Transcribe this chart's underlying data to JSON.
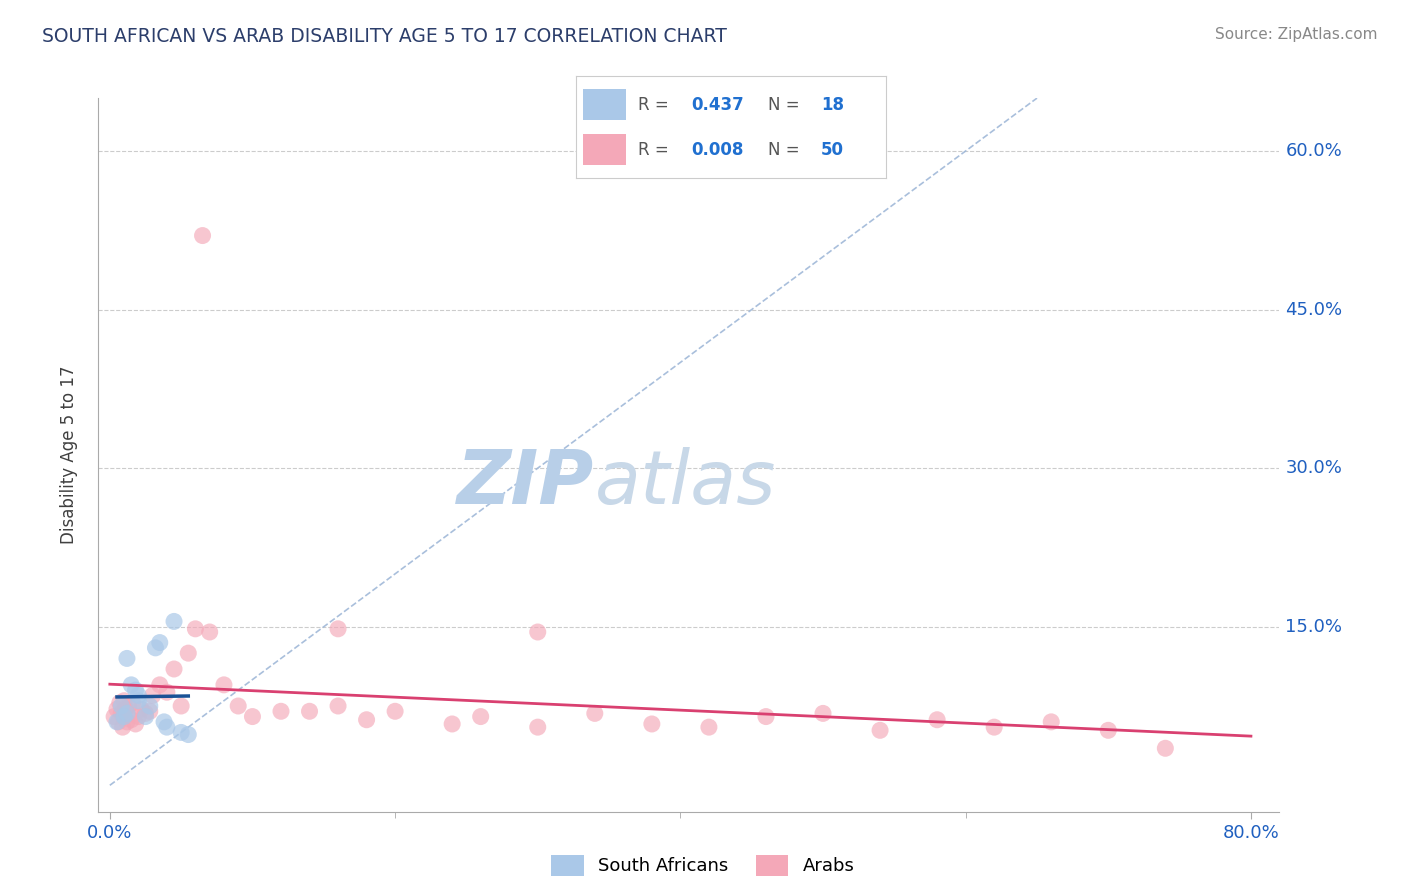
{
  "title": "SOUTH AFRICAN VS ARAB DISABILITY AGE 5 TO 17 CORRELATION CHART",
  "source": "Source: ZipAtlas.com",
  "ylabel": "Disability Age 5 to 17",
  "sa_R": 0.437,
  "sa_N": 18,
  "arab_R": 0.008,
  "arab_N": 50,
  "sa_color": "#aac8e8",
  "arab_color": "#f4a8b8",
  "sa_line_color": "#1a5296",
  "arab_line_color": "#d94070",
  "diag_color": "#a0b8d8",
  "grid_color": "#cccccc",
  "title_color": "#2c3e6b",
  "tick_color": "#2060c0",
  "watermark_zip_color": "#b8cfe8",
  "watermark_atlas_color": "#c8d8e8",
  "sa_points_x": [
    0.005,
    0.008,
    0.01,
    0.012,
    0.015,
    0.018,
    0.02,
    0.025,
    0.028,
    0.032,
    0.035,
    0.038,
    0.04,
    0.045,
    0.05,
    0.055,
    0.012,
    0.02
  ],
  "sa_points_y": [
    0.06,
    0.075,
    0.065,
    0.068,
    0.095,
    0.09,
    0.085,
    0.065,
    0.075,
    0.13,
    0.135,
    0.06,
    0.055,
    0.155,
    0.05,
    0.048,
    0.12,
    0.08
  ],
  "arab_points_x": [
    0.003,
    0.005,
    0.006,
    0.007,
    0.008,
    0.009,
    0.01,
    0.011,
    0.012,
    0.013,
    0.015,
    0.016,
    0.018,
    0.02,
    0.022,
    0.025,
    0.028,
    0.03,
    0.035,
    0.04,
    0.045,
    0.05,
    0.055,
    0.065,
    0.07,
    0.08,
    0.09,
    0.1,
    0.12,
    0.14,
    0.16,
    0.18,
    0.2,
    0.24,
    0.26,
    0.3,
    0.34,
    0.38,
    0.42,
    0.46,
    0.5,
    0.54,
    0.58,
    0.62,
    0.66,
    0.7,
    0.74,
    0.06,
    0.16,
    0.3
  ],
  "arab_points_y": [
    0.065,
    0.072,
    0.06,
    0.078,
    0.068,
    0.055,
    0.08,
    0.072,
    0.06,
    0.075,
    0.062,
    0.078,
    0.058,
    0.065,
    0.072,
    0.068,
    0.07,
    0.085,
    0.095,
    0.088,
    0.11,
    0.075,
    0.125,
    0.52,
    0.145,
    0.095,
    0.075,
    0.065,
    0.07,
    0.07,
    0.075,
    0.062,
    0.07,
    0.058,
    0.065,
    0.055,
    0.068,
    0.058,
    0.055,
    0.065,
    0.068,
    0.052,
    0.062,
    0.055,
    0.06,
    0.052,
    0.035,
    0.148,
    0.148,
    0.145
  ],
  "xlim_min": -0.008,
  "xlim_max": 0.82,
  "ylim_min": -0.025,
  "ylim_max": 0.65,
  "ytick_positions": [
    0.15,
    0.3,
    0.45,
    0.6
  ],
  "ytick_labels": [
    "15.0%",
    "30.0%",
    "45.0%",
    "60.0%"
  ],
  "xtick_positions": [
    0.0,
    0.8
  ],
  "xtick_labels": [
    "0.0%",
    "80.0%"
  ]
}
